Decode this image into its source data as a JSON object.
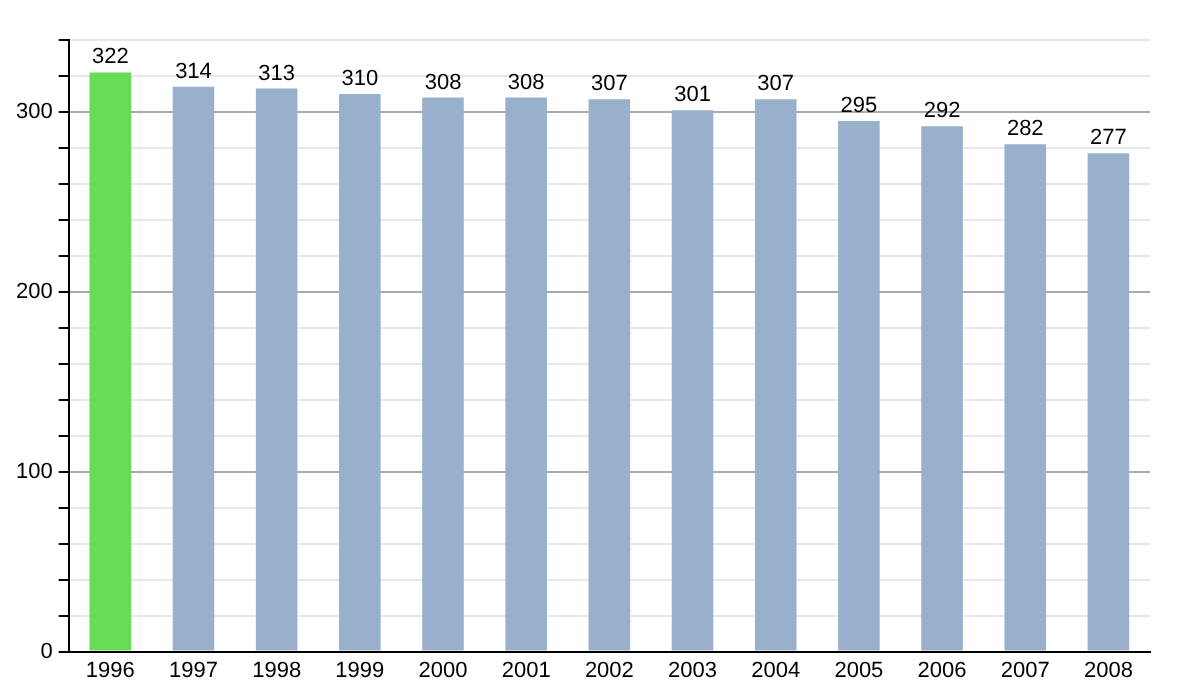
{
  "chart_data": {
    "type": "bar",
    "categories": [
      "1996",
      "1997",
      "1998",
      "1999",
      "2000",
      "2001",
      "2002",
      "2003",
      "2004",
      "2005",
      "2006",
      "2007",
      "2008"
    ],
    "values": [
      322,
      314,
      313,
      310,
      308,
      308,
      307,
      301,
      307,
      295,
      292,
      282,
      277
    ],
    "colors": [
      "#66dd55",
      "#98b0cc",
      "#98b0cc",
      "#98b0cc",
      "#98b0cc",
      "#98b0cc",
      "#98b0cc",
      "#98b0cc",
      "#98b0cc",
      "#98b0cc",
      "#98b0cc",
      "#98b0cc",
      "#98b0cc"
    ],
    "ylim": [
      0,
      340
    ],
    "yticks": [
      0,
      {
        "value": 20,
        "label": null
      },
      {
        "value": 40,
        "label": null
      },
      {
        "value": 60,
        "label": null
      },
      {
        "value": 80,
        "label": null
      },
      100,
      {
        "value": 120,
        "label": null
      },
      {
        "value": 140,
        "label": null
      },
      {
        "value": 160,
        "label": null
      },
      {
        "value": 180,
        "label": null
      },
      200,
      {
        "value": 220,
        "label": null
      },
      {
        "value": 240,
        "label": null
      },
      {
        "value": 260,
        "label": null
      },
      {
        "value": 280,
        "label": null
      },
      300,
      {
        "value": 320,
        "label": null
      },
      {
        "value": 340,
        "label": null
      }
    ],
    "grid": "y",
    "data_labels": true,
    "legend": false
  }
}
